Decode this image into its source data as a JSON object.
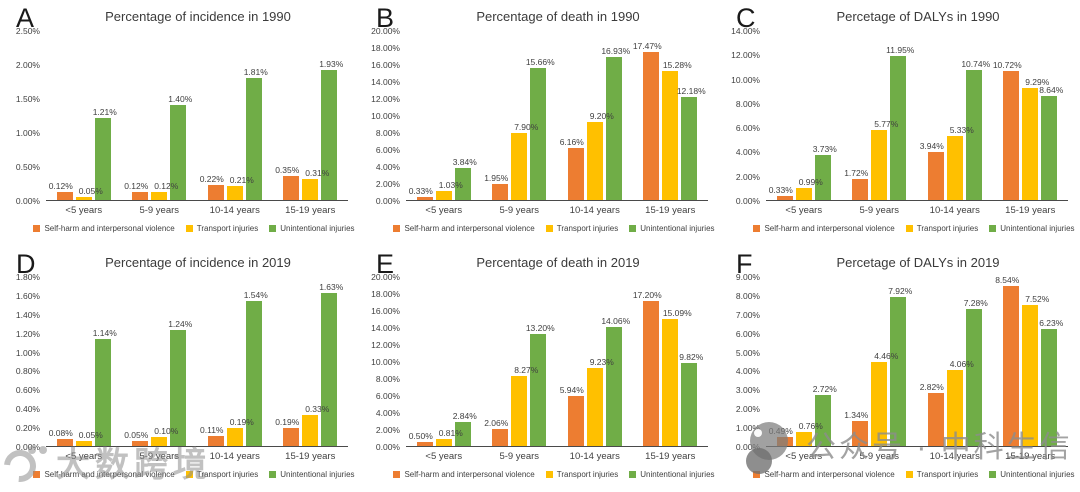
{
  "figure": {
    "background": "#ffffff",
    "text_color": "#404040",
    "axis_color": "#4a4a4a"
  },
  "legend": {
    "items": [
      {
        "label": "Self-harm and interpersonal violence",
        "color": "#ED7D31"
      },
      {
        "label": "Transport injuries",
        "color": "#FFC000"
      },
      {
        "label": "Unintentional injuries",
        "color": "#70AD47"
      }
    ]
  },
  "chart_data": [
    {
      "panel": "A",
      "type": "bar",
      "title": "Percentage of incidence in 1990",
      "categories": [
        "<5 years",
        "5-9 years",
        "10-14 years",
        "15-19 years"
      ],
      "series": [
        {
          "name": "Self-harm and interpersonal violence",
          "color": "#ED7D31",
          "values": [
            0.12,
            0.12,
            0.22,
            0.35
          ]
        },
        {
          "name": "Transport injuries",
          "color": "#FFC000",
          "values": [
            0.05,
            0.12,
            0.21,
            0.31
          ]
        },
        {
          "name": "Unintentional injuries",
          "color": "#70AD47",
          "values": [
            1.21,
            1.4,
            1.81,
            1.93
          ]
        }
      ],
      "ylim": [
        0,
        2.5
      ],
      "ytick_step": 0.5,
      "tick_format": "percent-2dp",
      "label_format": "percent-2dp",
      "grid": false,
      "legend_position": "bottom"
    },
    {
      "panel": "B",
      "type": "bar",
      "title": "Percentage of death in 1990",
      "categories": [
        "<5 years",
        "5-9 years",
        "10-14 years",
        "15-19 years"
      ],
      "series": [
        {
          "name": "Self-harm and interpersonal violence",
          "color": "#ED7D31",
          "values": [
            0.33,
            1.95,
            6.16,
            17.47
          ]
        },
        {
          "name": "Transport injuries",
          "color": "#FFC000",
          "values": [
            1.03,
            7.9,
            9.2,
            15.28
          ]
        },
        {
          "name": "Unintentional injuries",
          "color": "#70AD47",
          "values": [
            3.84,
            15.66,
            16.93,
            12.18
          ]
        }
      ],
      "ylim": [
        0,
        20
      ],
      "ytick_step": 2,
      "tick_format": "percent-2dp",
      "label_format": "percent-2dp",
      "grid": false,
      "legend_position": "bottom"
    },
    {
      "panel": "C",
      "type": "bar",
      "title": "Percetage of DALYs in 1990",
      "categories": [
        "<5 years",
        "5-9 years",
        "10-14 years",
        "15-19 years"
      ],
      "series": [
        {
          "name": "Self-harm and interpersonal violence",
          "color": "#ED7D31",
          "values": [
            0.33,
            1.72,
            3.94,
            10.72
          ]
        },
        {
          "name": "Transport injuries",
          "color": "#FFC000",
          "values": [
            0.99,
            5.77,
            5.33,
            9.29
          ]
        },
        {
          "name": "Unintentional injuries",
          "color": "#70AD47",
          "values": [
            3.73,
            11.95,
            10.74,
            8.64
          ]
        }
      ],
      "ylim": [
        0,
        14
      ],
      "ytick_step": 2,
      "tick_format": "percent-2dp",
      "label_format": "percent-2dp",
      "grid": false,
      "legend_position": "bottom"
    },
    {
      "panel": "D",
      "type": "bar",
      "title": "Percentage of incidence in 2019",
      "categories": [
        "<5 years",
        "5-9 years",
        "10-14 years",
        "15-19 years"
      ],
      "series": [
        {
          "name": "Self-harm and interpersonal violence",
          "color": "#ED7D31",
          "values": [
            0.08,
            0.05,
            0.11,
            0.19
          ]
        },
        {
          "name": "Transport injuries",
          "color": "#FFC000",
          "values": [
            0.05,
            0.1,
            0.19,
            0.33
          ]
        },
        {
          "name": "Unintentional injuries",
          "color": "#70AD47",
          "values": [
            1.14,
            1.24,
            1.54,
            1.63
          ]
        }
      ],
      "ylim": [
        0,
        1.8
      ],
      "ytick_step": 0.2,
      "tick_format": "percent-2dp",
      "label_format": "percent-2dp",
      "grid": false,
      "legend_position": "bottom"
    },
    {
      "panel": "E",
      "type": "bar",
      "title": "Percentage of death in 2019",
      "categories": [
        "<5 years",
        "5-9 years",
        "10-14 years",
        "15-19 years"
      ],
      "series": [
        {
          "name": "Self-harm and interpersonal violence",
          "color": "#ED7D31",
          "values": [
            0.5,
            2.06,
            5.94,
            17.2
          ]
        },
        {
          "name": "Transport injuries",
          "color": "#FFC000",
          "values": [
            0.81,
            8.27,
            9.23,
            15.09
          ]
        },
        {
          "name": "Unintentional injuries",
          "color": "#70AD47",
          "values": [
            2.84,
            13.2,
            14.06,
            9.82
          ]
        }
      ],
      "ylim": [
        0,
        20
      ],
      "ytick_step": 2,
      "tick_format": "percent-2dp",
      "label_format": "percent-2dp",
      "grid": false,
      "legend_position": "bottom"
    },
    {
      "panel": "F",
      "type": "bar",
      "title": "Percetage of DALYs in 2019",
      "categories": [
        "<5 years",
        "5-9 years",
        "10-14 years",
        "15-19 years"
      ],
      "series": [
        {
          "name": "Self-harm and interpersonal violence",
          "color": "#ED7D31",
          "values": [
            0.49,
            1.34,
            2.82,
            8.54
          ]
        },
        {
          "name": "Transport injuries",
          "color": "#FFC000",
          "values": [
            0.76,
            4.46,
            4.06,
            7.52
          ]
        },
        {
          "name": "Unintentional injuries",
          "color": "#70AD47",
          "values": [
            2.72,
            7.92,
            7.28,
            6.23
          ]
        }
      ],
      "ylim": [
        0,
        9
      ],
      "ytick_step": 1,
      "tick_format": "percent-2dp",
      "label_format": "percent-2dp",
      "grid": false,
      "legend_position": "bottom"
    }
  ],
  "watermarks": {
    "bottom_left": {
      "text": "大数跨境"
    },
    "panel_f": {
      "text": "公众号 · 中科生信"
    }
  }
}
